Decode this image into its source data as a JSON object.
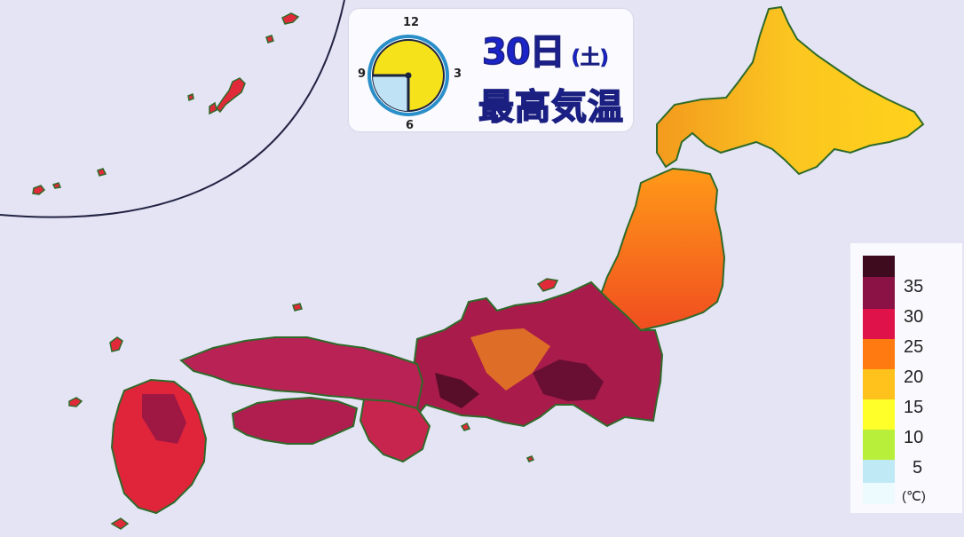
{
  "header": {
    "date_day": "30日",
    "date_weekday": "(土)",
    "title": "最高気温"
  },
  "clock": {
    "numbers": [
      "12",
      "3",
      "6",
      "9"
    ],
    "face_color": "#f5e21a",
    "shade_color": "#bfe3f5",
    "ring_color": "#2a8fc8"
  },
  "legend": {
    "labels": [
      "35",
      "30",
      "25",
      "20",
      "15",
      "10",
      "5"
    ],
    "unit": "(℃)",
    "colors": [
      "#3d0a1e",
      "#8a1245",
      "#c4124a",
      "#f01c22",
      "#ff7a10",
      "#ffc21c",
      "#ffea1a",
      "#ffff2a",
      "#c6f03a",
      "#a8ecd8",
      "#c6f0ff",
      "#edfbff"
    ]
  }
}
